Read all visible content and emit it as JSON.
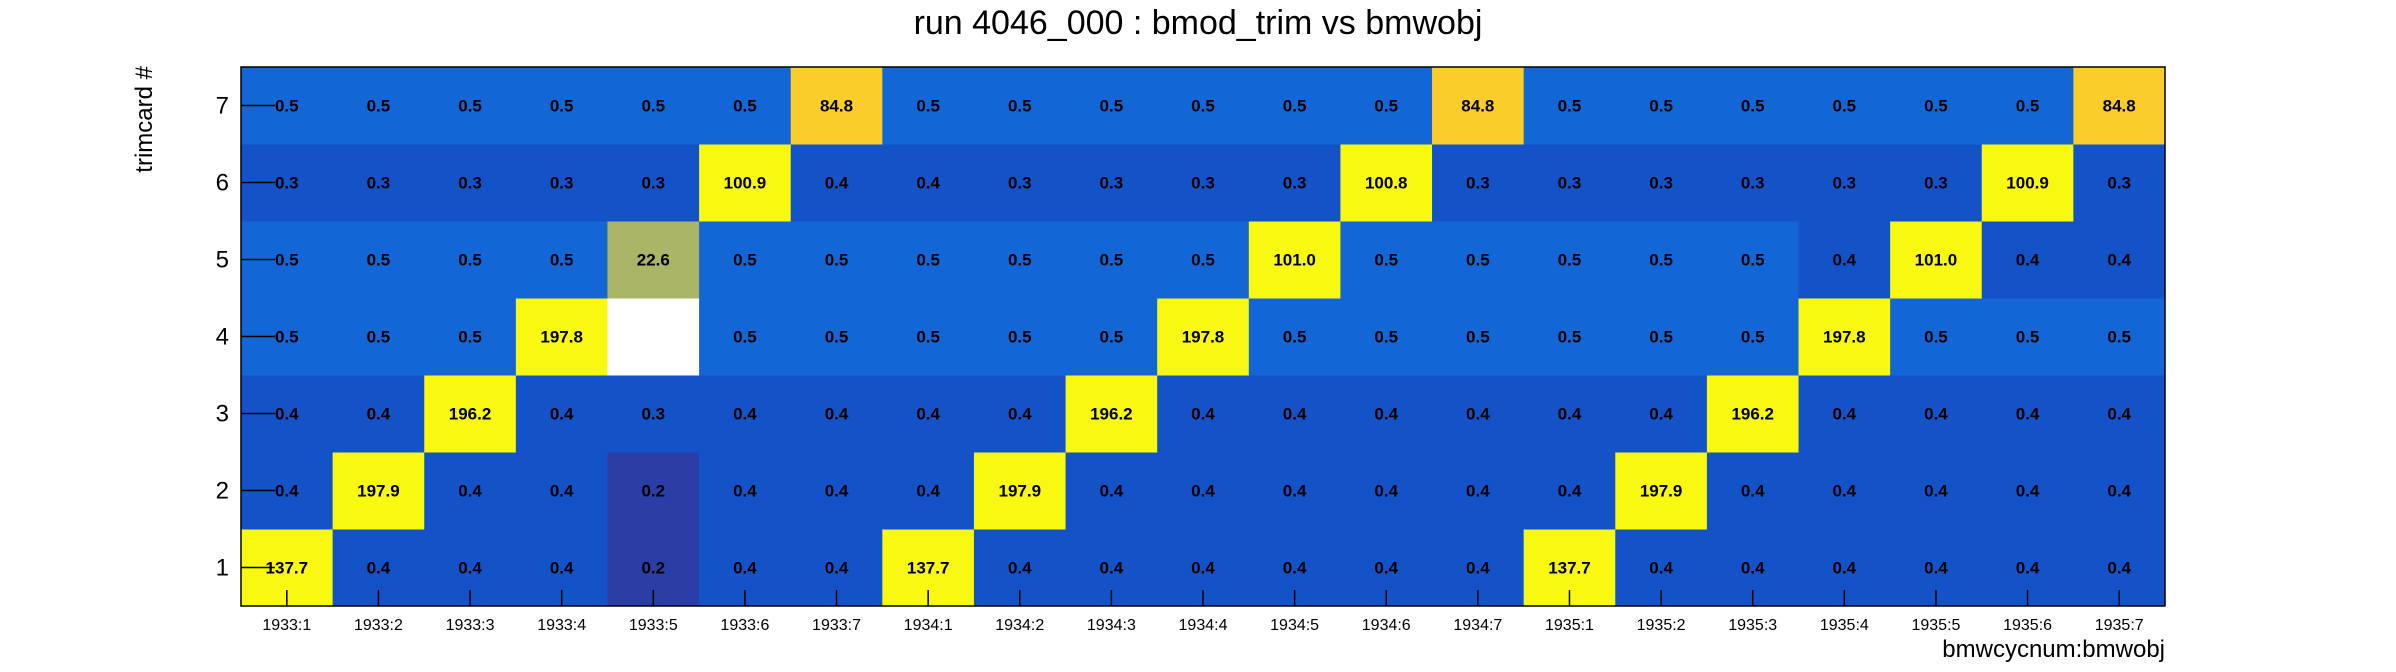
{
  "chart_data": {
    "type": "heatmap",
    "title": "run 4046_000 : bmod_trim vs bmwobj",
    "xlabel": "bmwcycnum:bmwobj",
    "ylabel": "trimcard #",
    "x_categories": [
      "1933:1",
      "1933:2",
      "1933:3",
      "1933:4",
      "1933:5",
      "1933:6",
      "1933:7",
      "1934:1",
      "1934:2",
      "1934:3",
      "1934:4",
      "1934:5",
      "1934:6",
      "1934:7",
      "1935:1",
      "1935:2",
      "1935:3",
      "1935:4",
      "1935:5",
      "1935:6",
      "1935:7"
    ],
    "y_categories": [
      "1",
      "2",
      "3",
      "4",
      "5",
      "6",
      "7"
    ],
    "cells": [
      [
        137.7,
        0.4,
        0.4,
        0.4,
        0.2,
        0.4,
        0.4,
        137.7,
        0.4,
        0.4,
        0.4,
        0.4,
        0.4,
        0.4,
        137.7,
        0.4,
        0.4,
        0.4,
        0.4,
        0.4,
        0.4
      ],
      [
        0.4,
        197.9,
        0.4,
        0.4,
        0.2,
        0.4,
        0.4,
        0.4,
        197.9,
        0.4,
        0.4,
        0.4,
        0.4,
        0.4,
        0.4,
        197.9,
        0.4,
        0.4,
        0.4,
        0.4,
        0.4
      ],
      [
        0.4,
        0.4,
        196.2,
        0.4,
        0.3,
        0.4,
        0.4,
        0.4,
        0.4,
        196.2,
        0.4,
        0.4,
        0.4,
        0.4,
        0.4,
        0.4,
        196.2,
        0.4,
        0.4,
        0.4,
        0.4
      ],
      [
        0.5,
        0.5,
        0.5,
        197.8,
        null,
        0.5,
        0.5,
        0.5,
        0.5,
        0.5,
        197.8,
        0.5,
        0.5,
        0.5,
        0.5,
        0.5,
        0.5,
        197.8,
        0.5,
        0.5,
        0.5
      ],
      [
        0.5,
        0.5,
        0.5,
        0.5,
        22.6,
        0.5,
        0.5,
        0.5,
        0.5,
        0.5,
        0.5,
        101.0,
        0.5,
        0.5,
        0.5,
        0.5,
        0.5,
        0.4,
        101.0,
        0.4,
        0.4
      ],
      [
        0.3,
        0.3,
        0.3,
        0.3,
        0.3,
        100.9,
        0.4,
        0.4,
        0.3,
        0.3,
        0.3,
        0.3,
        100.8,
        0.3,
        0.3,
        0.3,
        0.3,
        0.3,
        0.3,
        100.9,
        0.3
      ],
      [
        0.5,
        0.5,
        0.5,
        0.5,
        0.5,
        0.5,
        84.8,
        0.5,
        0.5,
        0.5,
        0.5,
        0.5,
        0.5,
        84.8,
        0.5,
        0.5,
        0.5,
        0.5,
        0.5,
        0.5,
        84.8
      ]
    ],
    "colors": {
      "high": "#f8f811",
      "orange": "#fbcd2b",
      "mid": "#aab566",
      "blue_light": "#1266d6",
      "blue_mid": "#1452c8",
      "blue_dark": "#2a3ea6",
      "empty": "#ffffff",
      "frame": "#000000"
    }
  }
}
